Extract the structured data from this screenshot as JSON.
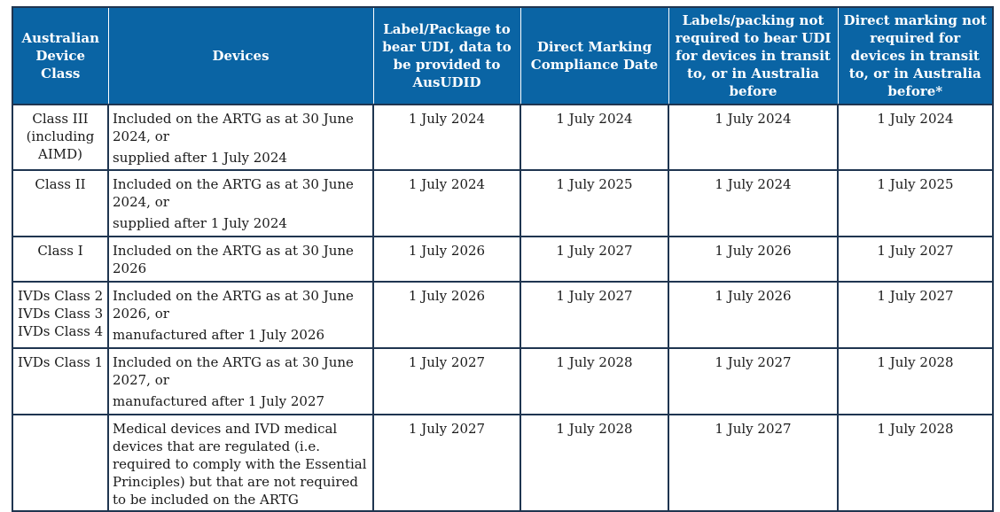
{
  "headers": [
    "Australian Device Class",
    "Devices",
    "Label/Package to bear UDI, data to be provided to AusUDID",
    "Direct Marking Compliance Date",
    "Labels/packing not required to bear UDI for devices in transit to, or in Australia before",
    "Direct marking not required for devices in transit to, or in Australia before*"
  ],
  "rows": [
    {
      "class_lines": [
        "Class III",
        "(including",
        "AIMD)"
      ],
      "device_main": "Included on the ARTG as at 30 June 2024, or",
      "device_extra": "supplied after 1 July 2024",
      "label_date": "1 July 2024",
      "marking_date": "1 July 2024",
      "transit_label": "1 July 2024",
      "transit_marking": "1 July 2024"
    },
    {
      "class_lines": [
        "Class II"
      ],
      "device_main": "Included on the ARTG as at 30 June 2024, or",
      "device_extra": "supplied after 1 July 2024",
      "label_date": "1 July 2024",
      "marking_date": "1 July 2025",
      "transit_label": "1 July 2024",
      "transit_marking": "1 July 2025"
    },
    {
      "class_lines": [
        "Class I"
      ],
      "device_main": "Included on the ARTG as at 30 June 2026",
      "device_extra": "",
      "label_date": "1 July 2026",
      "marking_date": "1 July 2027",
      "transit_label": "1 July 2026",
      "transit_marking": "1 July 2027"
    },
    {
      "class_lines": [
        "IVDs Class 2",
        "IVDs Class 3",
        "IVDs Class 4"
      ],
      "device_main": "Included on the ARTG as at 30 June 2026, or",
      "device_extra": "manufactured after 1 July 2026",
      "label_date": "1 July 2026",
      "marking_date": "1 July 2027",
      "transit_label": "1 July 2026",
      "transit_marking": "1 July 2027"
    },
    {
      "class_lines": [
        "IVDs Class 1"
      ],
      "device_main": "Included on the ARTG as at 30 June 2027, or",
      "device_extra": "manufactured after 1 July 2027",
      "label_date": "1 July 2027",
      "marking_date": "1 July 2028",
      "transit_label": "1 July 2027",
      "transit_marking": "1 July 2028"
    },
    {
      "class_lines": [],
      "device_main": "Medical devices and IVD medical devices that are regulated (i.e. required to comply with the Essential Principles) but that are not required to be included on the ARTG",
      "device_extra": "",
      "label_date": "1 July 2027",
      "marking_date": "1 July 2028",
      "transit_label": "1 July 2027",
      "transit_marking": "1 July 2028"
    }
  ]
}
